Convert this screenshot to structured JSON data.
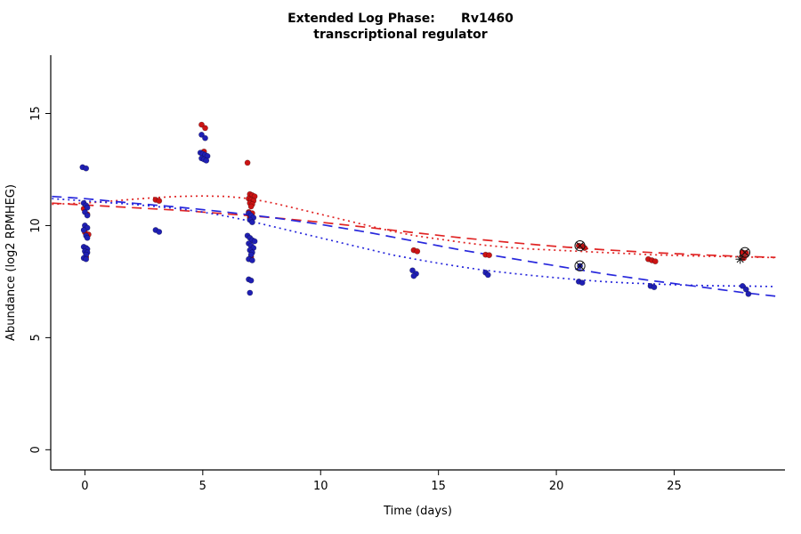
{
  "chart_data": {
    "type": "scatter",
    "title": "Extended Log Phase:      Rv1460",
    "subtitle": "transcriptional regulator",
    "xlabel": "Time  (days)",
    "ylabel": "Abundance  (log2 RPMHEG)",
    "xlim": [
      -1.45,
      29.7
    ],
    "ylim": [
      -0.9,
      17.6
    ],
    "xticks": [
      0,
      5,
      10,
      15,
      20,
      25
    ],
    "yticks": [
      0,
      5,
      10,
      15
    ],
    "grid": false,
    "legend": "none",
    "series": [
      {
        "name": "red-points",
        "color": "#cc1414",
        "points": [
          [
            -0.05,
            10.75
          ],
          [
            0.1,
            10.5
          ],
          [
            0,
            9.7
          ],
          [
            0.15,
            9.6
          ],
          [
            0.05,
            8.6
          ],
          [
            3,
            11.15
          ],
          [
            3.15,
            11.1
          ],
          [
            4.95,
            14.5
          ],
          [
            5.1,
            14.35
          ],
          [
            5.05,
            13.3
          ],
          [
            6.9,
            12.8
          ],
          [
            7,
            11.4
          ],
          [
            7.1,
            11.35
          ],
          [
            7.2,
            11.3
          ],
          [
            6.95,
            11.2
          ],
          [
            7.05,
            11.15
          ],
          [
            7.15,
            11.1
          ],
          [
            7.0,
            11.0
          ],
          [
            7.1,
            10.95
          ],
          [
            7.05,
            10.85
          ],
          [
            6.95,
            10.6
          ],
          [
            7.1,
            10.55
          ],
          [
            7.0,
            10.35
          ],
          [
            7.05,
            8.6
          ],
          [
            13.95,
            8.9
          ],
          [
            14.1,
            8.85
          ],
          [
            17,
            8.7
          ],
          [
            17.15,
            8.68
          ],
          [
            20.95,
            9.1
          ],
          [
            21.1,
            9.08
          ],
          [
            21.2,
            9.0
          ],
          [
            23.9,
            8.5
          ],
          [
            24.05,
            8.45
          ],
          [
            24.2,
            8.4
          ],
          [
            27.9,
            8.8
          ],
          [
            28.05,
            8.78
          ],
          [
            27.95,
            8.55
          ]
        ]
      },
      {
        "name": "blue-points",
        "color": "#1f1fb4",
        "points": [
          [
            -0.1,
            12.6
          ],
          [
            0.05,
            12.55
          ],
          [
            -0.05,
            11.0
          ],
          [
            0.05,
            10.9
          ],
          [
            0.1,
            10.8
          ],
          [
            0,
            10.6
          ],
          [
            0.1,
            10.45
          ],
          [
            0,
            10.0
          ],
          [
            0.1,
            9.9
          ],
          [
            -0.05,
            9.8
          ],
          [
            0.05,
            9.55
          ],
          [
            0.1,
            9.45
          ],
          [
            -0.05,
            9.05
          ],
          [
            0.05,
            9.0
          ],
          [
            0.1,
            8.95
          ],
          [
            0,
            8.85
          ],
          [
            0.1,
            8.8
          ],
          [
            0.05,
            8.7
          ],
          [
            -0.05,
            8.55
          ],
          [
            0.05,
            8.5
          ],
          [
            3,
            9.8
          ],
          [
            3.15,
            9.72
          ],
          [
            4.95,
            14.05
          ],
          [
            5.1,
            13.9
          ],
          [
            4.9,
            13.25
          ],
          [
            5.0,
            13.2
          ],
          [
            5.1,
            13.15
          ],
          [
            5.2,
            13.1
          ],
          [
            4.95,
            13.0
          ],
          [
            5.05,
            12.95
          ],
          [
            5.15,
            12.9
          ],
          [
            6.95,
            10.55
          ],
          [
            7.05,
            10.45
          ],
          [
            7.15,
            10.35
          ],
          [
            7.0,
            10.25
          ],
          [
            7.1,
            10.15
          ],
          [
            6.9,
            9.55
          ],
          [
            7.0,
            9.45
          ],
          [
            7.1,
            9.35
          ],
          [
            7.2,
            9.3
          ],
          [
            6.95,
            9.2
          ],
          [
            7.05,
            9.1
          ],
          [
            7.15,
            9.0
          ],
          [
            7.0,
            8.9
          ],
          [
            7.1,
            8.8
          ],
          [
            7.05,
            8.7
          ],
          [
            6.95,
            8.5
          ],
          [
            7.1,
            8.45
          ],
          [
            6.95,
            7.6
          ],
          [
            7.05,
            7.55
          ],
          [
            7.0,
            7.0
          ],
          [
            13.9,
            8.0
          ],
          [
            14.05,
            7.85
          ],
          [
            13.95,
            7.75
          ],
          [
            17,
            7.9
          ],
          [
            17.1,
            7.8
          ],
          [
            21,
            8.2
          ],
          [
            20.95,
            7.5
          ],
          [
            21.1,
            7.45
          ],
          [
            24,
            7.3
          ],
          [
            24.15,
            7.25
          ],
          [
            27.9,
            7.3
          ],
          [
            28.05,
            7.15
          ],
          [
            28.15,
            6.95
          ]
        ]
      }
    ],
    "curves": [
      {
        "name": "red-dotted-fit",
        "color": "#e02424",
        "dash": "2 4",
        "points": [
          [
            -1.4,
            10.95
          ],
          [
            0,
            11.0
          ],
          [
            1,
            11.08
          ],
          [
            2,
            11.17
          ],
          [
            3,
            11.25
          ],
          [
            4,
            11.3
          ],
          [
            5,
            11.32
          ],
          [
            6,
            11.3
          ],
          [
            7,
            11.2
          ],
          [
            8,
            11.0
          ],
          [
            9,
            10.75
          ],
          [
            10,
            10.5
          ],
          [
            11,
            10.25
          ],
          [
            12,
            10.0
          ],
          [
            13,
            9.75
          ],
          [
            14,
            9.55
          ],
          [
            15,
            9.4
          ],
          [
            16,
            9.25
          ],
          [
            17,
            9.12
          ],
          [
            18,
            9.02
          ],
          [
            19,
            8.95
          ],
          [
            20,
            8.9
          ],
          [
            21,
            8.85
          ],
          [
            22,
            8.8
          ],
          [
            23,
            8.75
          ],
          [
            24,
            8.7
          ],
          [
            25,
            8.67
          ],
          [
            26,
            8.64
          ],
          [
            27,
            8.62
          ],
          [
            28,
            8.6
          ],
          [
            29.3,
            8.57
          ]
        ]
      },
      {
        "name": "red-longdash-fit",
        "color": "#e02424",
        "dash": "11 7",
        "points": [
          [
            -1.4,
            11.0
          ],
          [
            0,
            10.92
          ],
          [
            2,
            10.8
          ],
          [
            4,
            10.68
          ],
          [
            6,
            10.52
          ],
          [
            8,
            10.35
          ],
          [
            10,
            10.15
          ],
          [
            12,
            9.92
          ],
          [
            14,
            9.68
          ],
          [
            16,
            9.45
          ],
          [
            18,
            9.25
          ],
          [
            20,
            9.07
          ],
          [
            22,
            8.92
          ],
          [
            24,
            8.8
          ],
          [
            26,
            8.7
          ],
          [
            28,
            8.62
          ],
          [
            29.3,
            8.58
          ]
        ]
      },
      {
        "name": "blue-dotted-fit",
        "color": "#2828dc",
        "dash": "2 4",
        "points": [
          [
            -1.4,
            11.2
          ],
          [
            0,
            11.1
          ],
          [
            1,
            11.02
          ],
          [
            2,
            10.95
          ],
          [
            3,
            10.85
          ],
          [
            4,
            10.75
          ],
          [
            5,
            10.6
          ],
          [
            6,
            10.42
          ],
          [
            7,
            10.2
          ],
          [
            8,
            9.95
          ],
          [
            9,
            9.7
          ],
          [
            10,
            9.45
          ],
          [
            11,
            9.2
          ],
          [
            12,
            8.95
          ],
          [
            13,
            8.7
          ],
          [
            14,
            8.5
          ],
          [
            15,
            8.32
          ],
          [
            16,
            8.15
          ],
          [
            17,
            8.0
          ],
          [
            18,
            7.88
          ],
          [
            19,
            7.77
          ],
          [
            20,
            7.67
          ],
          [
            21,
            7.58
          ],
          [
            22,
            7.5
          ],
          [
            23,
            7.44
          ],
          [
            24,
            7.4
          ],
          [
            25,
            7.36
          ],
          [
            26,
            7.33
          ],
          [
            27,
            7.31
          ],
          [
            28,
            7.3
          ],
          [
            29.3,
            7.28
          ]
        ]
      },
      {
        "name": "blue-longdash-fit",
        "color": "#2828dc",
        "dash": "11 7",
        "points": [
          [
            -1.4,
            11.3
          ],
          [
            0,
            11.2
          ],
          [
            2,
            11.0
          ],
          [
            4,
            10.82
          ],
          [
            6,
            10.6
          ],
          [
            8,
            10.35
          ],
          [
            10,
            10.05
          ],
          [
            12,
            9.7
          ],
          [
            14,
            9.3
          ],
          [
            16,
            8.9
          ],
          [
            18,
            8.55
          ],
          [
            20,
            8.2
          ],
          [
            22,
            7.85
          ],
          [
            24,
            7.55
          ],
          [
            26,
            7.28
          ],
          [
            28,
            7.0
          ],
          [
            29.3,
            6.85
          ]
        ]
      }
    ],
    "markers": [
      {
        "shape": "circle-x",
        "x": 21.0,
        "y": 9.1,
        "color": "#111111"
      },
      {
        "shape": "circle-x",
        "x": 21.0,
        "y": 8.2,
        "color": "#111111"
      },
      {
        "shape": "circle-x",
        "x": 28.0,
        "y": 8.8,
        "color": "#111111"
      },
      {
        "shape": "star",
        "x": 27.8,
        "y": 8.5,
        "color": "#111111"
      }
    ]
  }
}
